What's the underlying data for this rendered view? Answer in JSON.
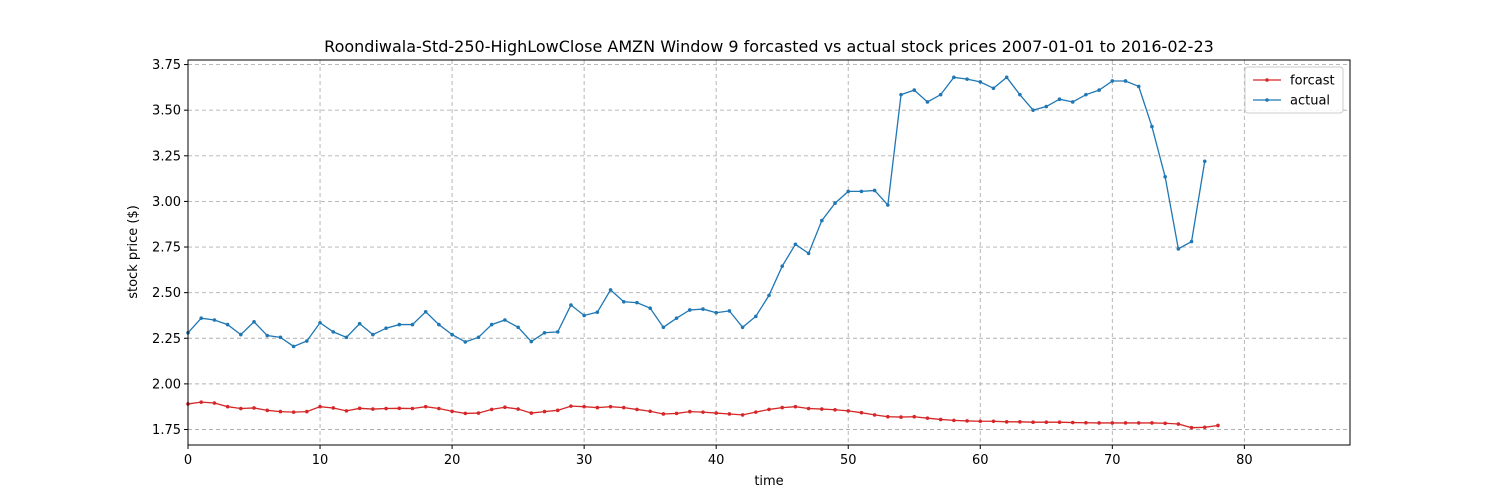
{
  "chart_data": {
    "type": "line",
    "title": "Roondiwala-Std-250-HighLowClose AMZN Window 9 forcasted vs actual stock prices 2007-01-01 to 2016-02-23",
    "xlabel": "time",
    "ylabel": "stock price ($)",
    "xlim": [
      0,
      88
    ],
    "ylim": [
      1.665,
      3.775
    ],
    "xticks": [
      0,
      10,
      20,
      30,
      40,
      50,
      60,
      70,
      80
    ],
    "xtick_labels": [
      "0",
      "10",
      "20",
      "30",
      "40",
      "50",
      "60",
      "70",
      "80"
    ],
    "yticks": [
      1.75,
      2.0,
      2.25,
      2.5,
      2.75,
      3.0,
      3.25,
      3.5,
      3.75
    ],
    "ytick_labels": [
      "1.75",
      "2.00",
      "2.25",
      "2.50",
      "2.75",
      "3.00",
      "3.25",
      "3.50",
      "3.75"
    ],
    "grid": true,
    "legend_position": "top-right",
    "series": [
      {
        "name": "forcast",
        "color": "#d62728",
        "values": [
          1.89,
          1.9,
          1.895,
          1.875,
          1.865,
          1.868,
          1.855,
          1.848,
          1.845,
          1.848,
          1.875,
          1.868,
          1.852,
          1.866,
          1.862,
          1.865,
          1.866,
          1.865,
          1.875,
          1.865,
          1.85,
          1.838,
          1.84,
          1.86,
          1.872,
          1.862,
          1.84,
          1.848,
          1.855,
          1.878,
          1.875,
          1.87,
          1.875,
          1.87,
          1.86,
          1.85,
          1.835,
          1.838,
          1.848,
          1.845,
          1.84,
          1.835,
          1.83,
          1.845,
          1.86,
          1.87,
          1.875,
          1.865,
          1.862,
          1.858,
          1.852,
          1.842,
          1.83,
          1.82,
          1.818,
          1.82,
          1.812,
          1.805,
          1.8,
          1.797,
          1.795,
          1.795,
          1.792,
          1.792,
          1.79,
          1.79,
          1.79,
          1.788,
          1.787,
          1.786,
          1.786,
          1.786,
          1.786,
          1.786,
          1.784,
          1.78,
          1.76,
          1.762,
          1.772
        ]
      },
      {
        "name": "actual",
        "color": "#1f77b4",
        "values": [
          2.28,
          2.36,
          2.35,
          2.325,
          2.27,
          2.34,
          2.265,
          2.255,
          2.205,
          2.235,
          2.335,
          2.285,
          2.255,
          2.33,
          2.27,
          2.305,
          2.325,
          2.325,
          2.395,
          2.325,
          2.27,
          2.23,
          2.255,
          2.325,
          2.35,
          2.31,
          2.232,
          2.28,
          2.285,
          2.432,
          2.375,
          2.393,
          2.515,
          2.45,
          2.445,
          2.415,
          2.31,
          2.36,
          2.405,
          2.41,
          2.39,
          2.4,
          2.31,
          2.37,
          2.485,
          2.645,
          2.765,
          2.715,
          2.895,
          2.99,
          3.055,
          3.055,
          3.06,
          2.98,
          3.585,
          3.61,
          3.545,
          3.585,
          3.68,
          3.67,
          3.655,
          3.62,
          3.68,
          3.585,
          3.5,
          3.52,
          3.56,
          3.545,
          3.585,
          3.61,
          3.66,
          3.66,
          3.63,
          3.41,
          3.135,
          2.74,
          2.78,
          3.22
        ]
      }
    ]
  }
}
